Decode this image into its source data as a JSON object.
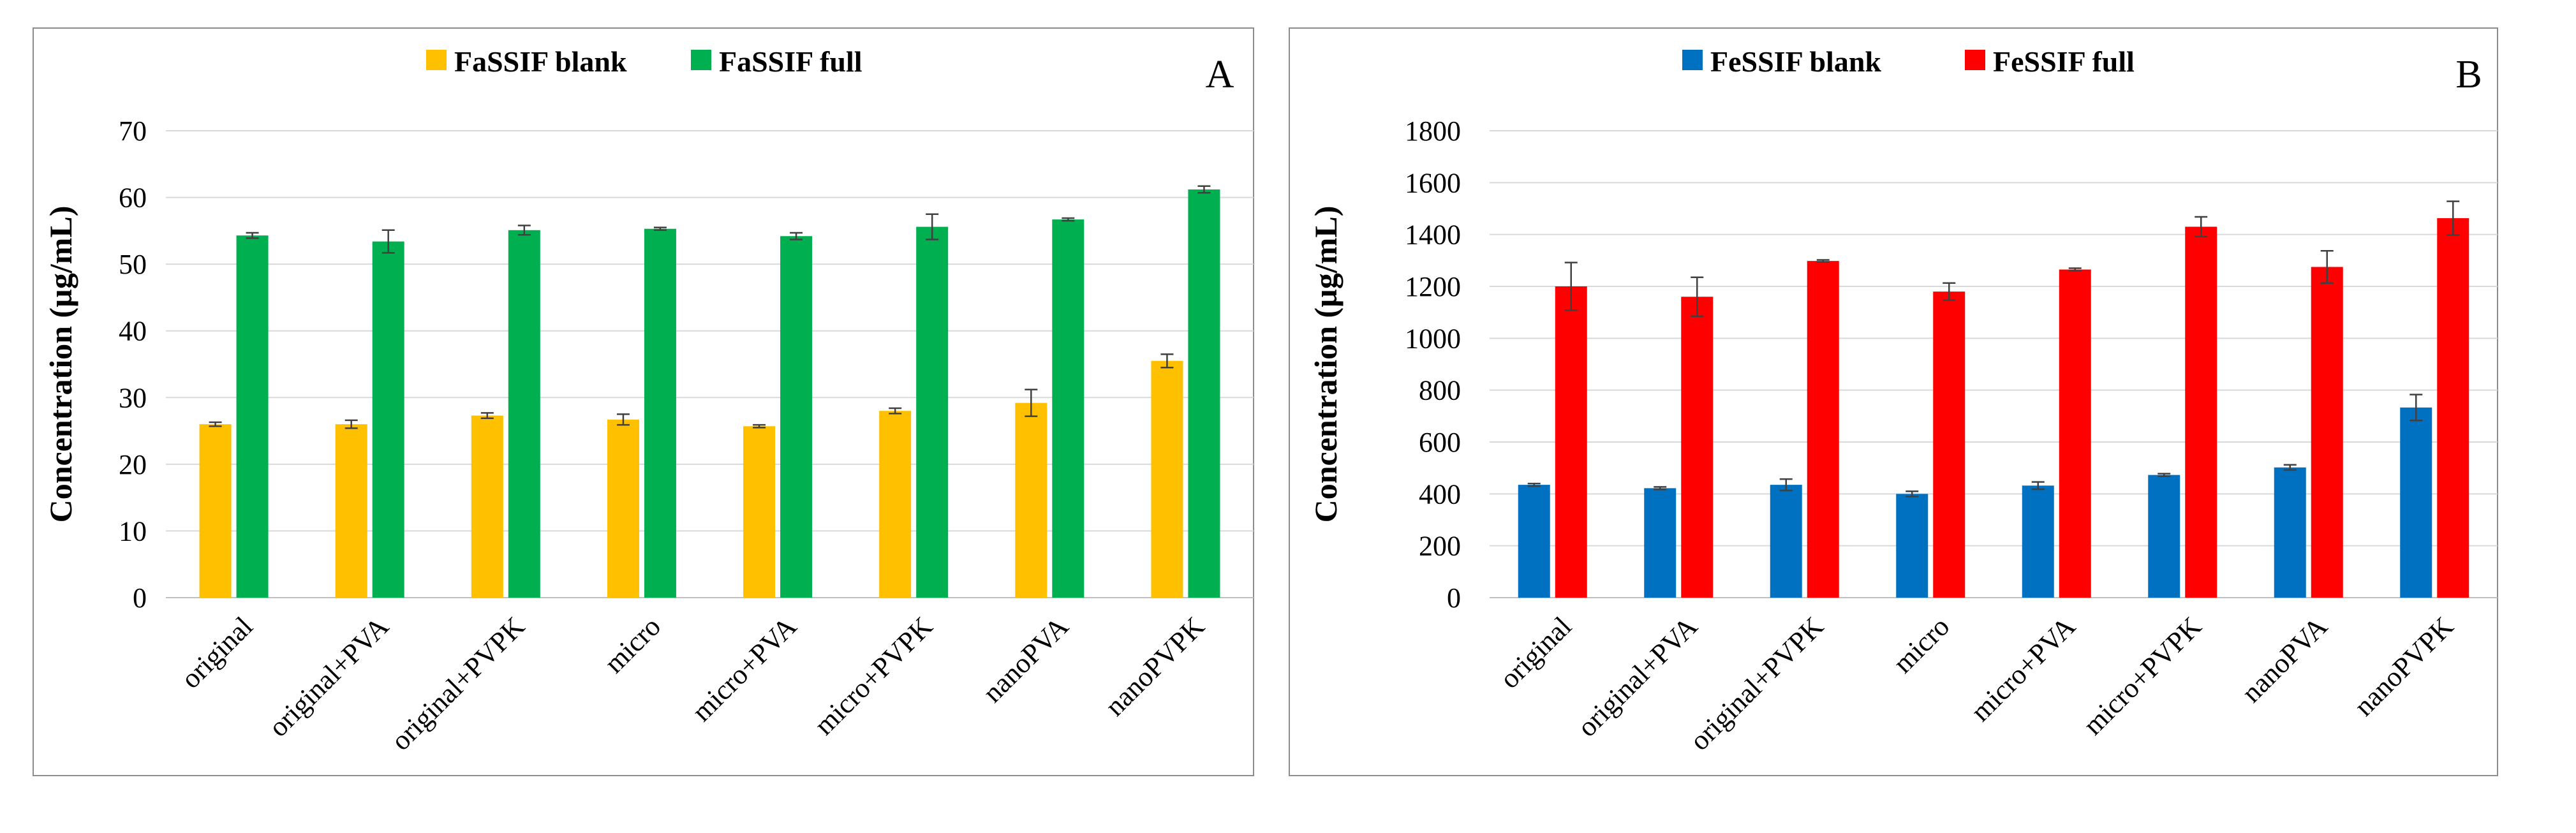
{
  "chart_data": [
    {
      "type": "bar",
      "panel": "A",
      "title": "",
      "xlabel": "",
      "ylabel": "Concentration  (µg/mL)",
      "ylim": [
        0,
        70
      ],
      "yticks": [
        0,
        10,
        20,
        30,
        40,
        50,
        60,
        70
      ],
      "grid": true,
      "legend_position": "top-center",
      "categories": [
        "original",
        "original+PVA",
        "original+PVPK",
        "micro",
        "micro+PVA",
        "micro+PVPK",
        "nanoPVA",
        "nanoPVPK"
      ],
      "series": [
        {
          "name": "FaSSIF blank",
          "color": "#FFC000",
          "values": [
            26.0,
            26.0,
            27.3,
            26.7,
            25.7,
            28.0,
            29.2,
            35.5
          ],
          "errors": [
            0.3,
            0.6,
            0.4,
            0.8,
            0.2,
            0.4,
            2.0,
            1.0
          ]
        },
        {
          "name": "FaSSIF full",
          "color": "#00B050",
          "values": [
            54.3,
            53.4,
            55.1,
            55.3,
            54.2,
            55.6,
            56.7,
            61.2
          ],
          "errors": [
            0.4,
            1.7,
            0.7,
            0.2,
            0.5,
            1.9,
            0.2,
            0.5
          ]
        }
      ]
    },
    {
      "type": "bar",
      "panel": "B",
      "title": "",
      "xlabel": "",
      "ylabel": "Concentration  (µg/mL)",
      "ylim": [
        0,
        1800
      ],
      "yticks": [
        0,
        200,
        400,
        600,
        800,
        1000,
        1200,
        1400,
        1600,
        1800
      ],
      "grid": true,
      "legend_position": "top-center",
      "categories": [
        "original",
        "original+PVA",
        "original+PVPK",
        "micro",
        "micro+PVA",
        "micro+PVPK",
        "nanoPVA",
        "nanoPVPK"
      ],
      "series": [
        {
          "name": "FeSSIF blank",
          "color": "#0070C0",
          "values": [
            435,
            422,
            435,
            400,
            432,
            473,
            502,
            733
          ],
          "errors": [
            5,
            5,
            22,
            10,
            14,
            5,
            10,
            50
          ]
        },
        {
          "name": "FeSSIF full",
          "color": "#FF0000",
          "values": [
            1200,
            1160,
            1298,
            1180,
            1265,
            1430,
            1275,
            1463
          ],
          "errors": [
            92,
            75,
            4,
            33,
            5,
            38,
            62,
            65
          ]
        }
      ]
    }
  ]
}
